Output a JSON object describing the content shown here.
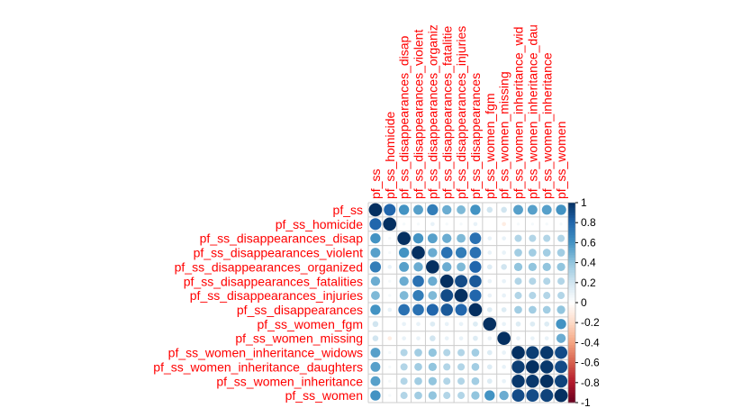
{
  "chart_data": {
    "type": "heatmap",
    "variables": [
      "pf_ss",
      "pf_ss_homicide",
      "pf_ss_disappearances_disap",
      "pf_ss_disappearances_violent",
      "pf_ss_disappearances_organized",
      "pf_ss_disappearances_fatalities",
      "pf_ss_disappearances_injuries",
      "pf_ss_disappearances",
      "pf_ss_women_fgm",
      "pf_ss_women_missing",
      "pf_ss_women_inheritance_widows",
      "pf_ss_women_inheritance_daughters",
      "pf_ss_women_inheritance",
      "pf_ss_women"
    ],
    "column_labels": [
      "pf_ss",
      "pf_ss_homicide",
      "pf_ss_disappearances_disap",
      "pf_ss_disappearances_violent",
      "pf_ss_disappearances_organiz",
      "pf_ss_disappearances_fatalitie",
      "pf_ss_disappearances_injuries",
      "pf_ss_disappearances",
      "pf_ss_women_fgm",
      "pf_ss_women_missing",
      "pf_ss_women_inheritance_wid",
      "pf_ss_women_inheritance_dau",
      "pf_ss_women_inheritance",
      "pf_ss_women"
    ],
    "matrix": [
      [
        1.0,
        0.8,
        0.6,
        0.55,
        0.7,
        0.5,
        0.45,
        0.6,
        0.2,
        0.2,
        0.55,
        0.55,
        0.55,
        0.6
      ],
      [
        0.8,
        1.0,
        0.05,
        0.05,
        0.1,
        0.05,
        0.05,
        0.1,
        0.0,
        -0.1,
        0.05,
        0.05,
        0.05,
        0.05
      ],
      [
        0.6,
        0.05,
        1.0,
        0.6,
        0.55,
        0.5,
        0.45,
        0.75,
        0.1,
        0.1,
        0.3,
        0.3,
        0.3,
        0.3
      ],
      [
        0.55,
        0.05,
        0.6,
        1.0,
        0.5,
        0.75,
        0.7,
        0.75,
        0.1,
        0.1,
        0.35,
        0.35,
        0.35,
        0.35
      ],
      [
        0.7,
        0.1,
        0.55,
        0.5,
        1.0,
        0.5,
        0.45,
        0.8,
        0.15,
        0.2,
        0.4,
        0.4,
        0.4,
        0.4
      ],
      [
        0.5,
        0.05,
        0.5,
        0.75,
        0.5,
        1.0,
        0.9,
        0.85,
        0.1,
        0.1,
        0.3,
        0.3,
        0.3,
        0.3
      ],
      [
        0.45,
        0.05,
        0.45,
        0.7,
        0.45,
        0.9,
        1.0,
        0.8,
        0.1,
        0.1,
        0.3,
        0.3,
        0.3,
        0.3
      ],
      [
        0.6,
        0.1,
        0.75,
        0.75,
        0.8,
        0.85,
        0.8,
        1.0,
        0.15,
        0.15,
        0.35,
        0.35,
        0.35,
        0.4
      ],
      [
        0.2,
        0.0,
        0.1,
        0.1,
        0.15,
        0.1,
        0.1,
        0.15,
        1.0,
        0.1,
        0.15,
        0.15,
        0.15,
        0.6
      ],
      [
        0.2,
        -0.1,
        0.1,
        0.1,
        0.2,
        0.1,
        0.1,
        0.15,
        0.1,
        1.0,
        0.1,
        0.1,
        0.1,
        0.5
      ],
      [
        0.55,
        0.05,
        0.3,
        0.35,
        0.4,
        0.3,
        0.3,
        0.35,
        0.15,
        0.1,
        1.0,
        0.95,
        0.97,
        0.9
      ],
      [
        0.55,
        0.05,
        0.3,
        0.35,
        0.4,
        0.3,
        0.3,
        0.35,
        0.15,
        0.1,
        0.95,
        1.0,
        0.97,
        0.9
      ],
      [
        0.55,
        0.05,
        0.3,
        0.35,
        0.4,
        0.3,
        0.3,
        0.35,
        0.15,
        0.1,
        0.97,
        0.97,
        1.0,
        0.93
      ],
      [
        0.6,
        0.05,
        0.3,
        0.35,
        0.4,
        0.3,
        0.3,
        0.4,
        0.6,
        0.5,
        0.9,
        0.9,
        0.93,
        1.0
      ]
    ],
    "legend": {
      "range": [
        -1,
        1
      ],
      "ticks": [
        "1",
        "0.8",
        "0.6",
        "0.4",
        "0.2",
        "0",
        "-0.2",
        "-0.4",
        "-0.6",
        "-0.8",
        "-1"
      ]
    },
    "colors": {
      "label": "#ff0000",
      "grid": "#cccccc",
      "text": "#000000",
      "scale": [
        "#67001f",
        "#b2182b",
        "#d6604d",
        "#f4a582",
        "#fddbc7",
        "#ffffff",
        "#d1e5f0",
        "#92c5de",
        "#4393c3",
        "#2166ac",
        "#053061"
      ]
    }
  }
}
